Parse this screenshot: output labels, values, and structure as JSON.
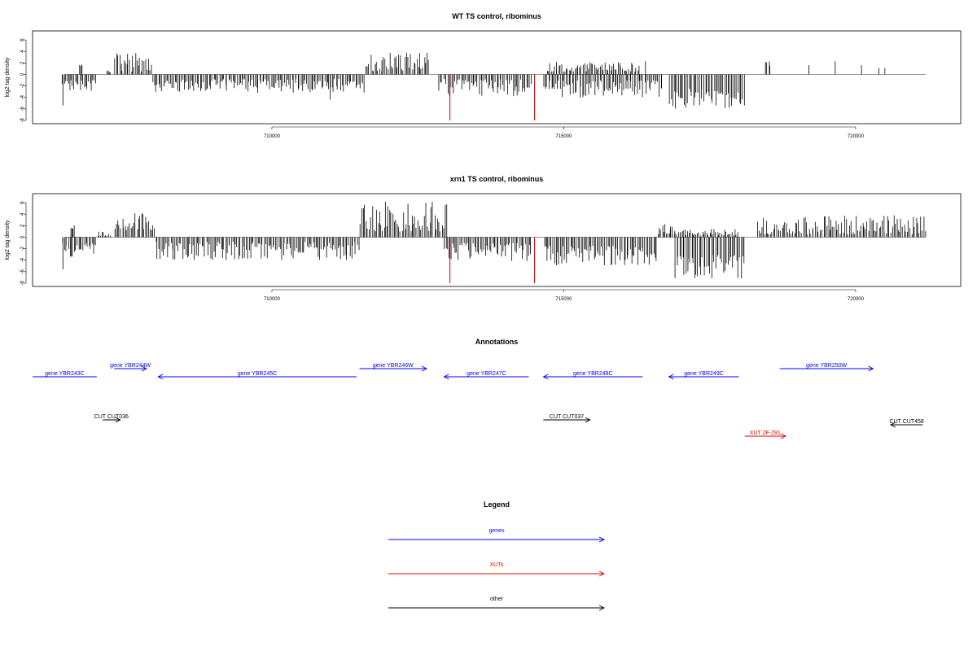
{
  "chart_data": [
    {
      "type": "bar",
      "title": "WT TS control, ribominus",
      "ylabel": "log2 tag density",
      "ylim": [
        -8,
        7
      ],
      "yticks": [
        -8,
        -6,
        -4,
        -2,
        0,
        2,
        4,
        6
      ],
      "xlim": [
        705900,
        721800
      ],
      "xticks": [
        710000,
        715000,
        720000
      ],
      "highlights": [
        {
          "x": 713050,
          "y": -8,
          "color": "#cc0000"
        },
        {
          "x": 714500,
          "y": -8,
          "color": "#cc0000"
        }
      ],
      "segments": [
        {
          "start": 706400,
          "end": 707000,
          "sign": -1,
          "min": 1.0,
          "max": 3.0,
          "spike": {
            "x": 706420,
            "y": -5.4
          }
        },
        {
          "start": 706700,
          "end": 706760,
          "sign": 1,
          "min": 1.5,
          "max": 2.2
        },
        {
          "start": 707150,
          "end": 707250,
          "sign": 1,
          "min": 0.3,
          "max": 1.0
        },
        {
          "start": 707300,
          "end": 707950,
          "sign": 1,
          "min": 0.5,
          "max": 3.8
        },
        {
          "start": 707950,
          "end": 711600,
          "sign": -1,
          "min": 0.8,
          "max": 3.2,
          "spike": {
            "x": 711000,
            "y": -4.4
          }
        },
        {
          "start": 711600,
          "end": 712700,
          "sign": 1,
          "min": 0.5,
          "max": 3.9
        },
        {
          "start": 712850,
          "end": 714450,
          "sign": -1,
          "min": 0.8,
          "max": 3.8
        },
        {
          "start": 714650,
          "end": 716700,
          "sign": -1,
          "min": 1.0,
          "max": 4.0
        },
        {
          "start": 714700,
          "end": 716300,
          "sign": 1,
          "min": 0.5,
          "max": 2.2,
          "spike": {
            "x": 716400,
            "y": 2.3
          }
        },
        {
          "start": 716800,
          "end": 718100,
          "sign": -1,
          "min": 2.5,
          "max": 6.0
        },
        {
          "start": 718450,
          "end": 718550,
          "sign": 1,
          "min": 1.5,
          "max": 2.5
        }
      ],
      "isolated": [
        {
          "x": 719200,
          "y": 1.6
        },
        {
          "x": 719650,
          "y": 2.3
        },
        {
          "x": 720100,
          "y": 1.6
        },
        {
          "x": 720400,
          "y": 1.1
        },
        {
          "x": 720500,
          "y": 1.1
        }
      ]
    },
    {
      "type": "bar",
      "title": "xrn1 TS control, ribominus",
      "ylabel": "log2 tag density",
      "ylim": [
        -8,
        7
      ],
      "yticks": [
        -8,
        -6,
        -4,
        -2,
        0,
        2,
        4,
        6
      ],
      "xlim": [
        705900,
        721800
      ],
      "xticks": [
        710000,
        715000,
        720000
      ],
      "highlights": [
        {
          "x": 713050,
          "y": -8,
          "color": "#cc0000"
        },
        {
          "x": 714500,
          "y": -8,
          "color": "#cc0000"
        }
      ],
      "segments": [
        {
          "start": 706400,
          "end": 707000,
          "sign": -1,
          "min": 1.0,
          "max": 3.5,
          "spike": {
            "x": 706420,
            "y": -5.6
          }
        },
        {
          "start": 706550,
          "end": 706620,
          "sign": 1,
          "min": 1.5,
          "max": 2.2
        },
        {
          "start": 707000,
          "end": 707250,
          "sign": 1,
          "min": 0.2,
          "max": 1.0
        },
        {
          "start": 707300,
          "end": 708000,
          "sign": 1,
          "min": 1.0,
          "max": 4.3
        },
        {
          "start": 708000,
          "end": 711500,
          "sign": -1,
          "min": 0.8,
          "max": 4.0
        },
        {
          "start": 711500,
          "end": 713000,
          "sign": 1,
          "min": 1.0,
          "max": 6.2
        },
        {
          "start": 712950,
          "end": 714450,
          "sign": -1,
          "min": 1.0,
          "max": 4.2
        },
        {
          "start": 714650,
          "end": 716600,
          "sign": -1,
          "min": 1.5,
          "max": 5.0
        },
        {
          "start": 716600,
          "end": 716900,
          "sign": 1,
          "min": 0.5,
          "max": 2.3
        },
        {
          "start": 716900,
          "end": 718100,
          "sign": -1,
          "min": 3.0,
          "max": 7.2
        },
        {
          "start": 716800,
          "end": 718000,
          "sign": 1,
          "min": 0.3,
          "max": 1.6
        },
        {
          "start": 718300,
          "end": 721200,
          "sign": 1,
          "min": 0.5,
          "max": 3.8
        }
      ],
      "isolated": []
    }
  ],
  "annotations": {
    "title": "Annotations",
    "items": [
      {
        "label": "gene YBR243C",
        "start": 705900,
        "end": 707000,
        "strand": "-",
        "row": 1,
        "color": "#0000ff",
        "arrow": false
      },
      {
        "label": "gene YBR244W",
        "start": 707300,
        "end": 707850,
        "strand": "+",
        "row": 0,
        "color": "#0000ff",
        "arrow": true
      },
      {
        "label": "gene YBR245C",
        "start": 708050,
        "end": 711450,
        "strand": "-",
        "row": 1,
        "color": "#0000ff",
        "arrow": true
      },
      {
        "label": "gene YBR246W",
        "start": 711500,
        "end": 712650,
        "strand": "+",
        "row": 0,
        "color": "#0000ff",
        "arrow": true
      },
      {
        "label": "gene YBR247C",
        "start": 712950,
        "end": 714400,
        "strand": "-",
        "row": 1,
        "color": "#0000ff",
        "arrow": true
      },
      {
        "label": "gene YBR248C",
        "start": 714650,
        "end": 716350,
        "strand": "-",
        "row": 1,
        "color": "#0000ff",
        "arrow": true
      },
      {
        "label": "gene YBR249C",
        "start": 716800,
        "end": 718000,
        "strand": "-",
        "row": 1,
        "color": "#0000ff",
        "arrow": true
      },
      {
        "label": "gene YBR250W",
        "start": 718700,
        "end": 720300,
        "strand": "+",
        "row": 0,
        "color": "#0000ff",
        "arrow": true
      },
      {
        "label": "CUT CUT036",
        "start": 707100,
        "end": 707400,
        "strand": "+",
        "row": 2,
        "color": "#000000",
        "arrow": true
      },
      {
        "label": "CUT CUT037",
        "start": 714650,
        "end": 715450,
        "strand": "+",
        "row": 2,
        "color": "#000000",
        "arrow": true
      },
      {
        "label": "XUT 2F-291",
        "start": 718100,
        "end": 718800,
        "strand": "+",
        "row": 3,
        "color": "#dd0000",
        "arrow": true
      },
      {
        "label": "CUT CUT458",
        "start": 720600,
        "end": 721150,
        "strand": "-",
        "row": 4,
        "color": "#000000",
        "arrow": true
      }
    ]
  },
  "legend": {
    "title": "Legend",
    "items": [
      {
        "label": "genes",
        "color": "#0000ff"
      },
      {
        "label": "XUTs",
        "color": "#dd0000"
      },
      {
        "label": "other",
        "color": "#000000"
      }
    ]
  }
}
